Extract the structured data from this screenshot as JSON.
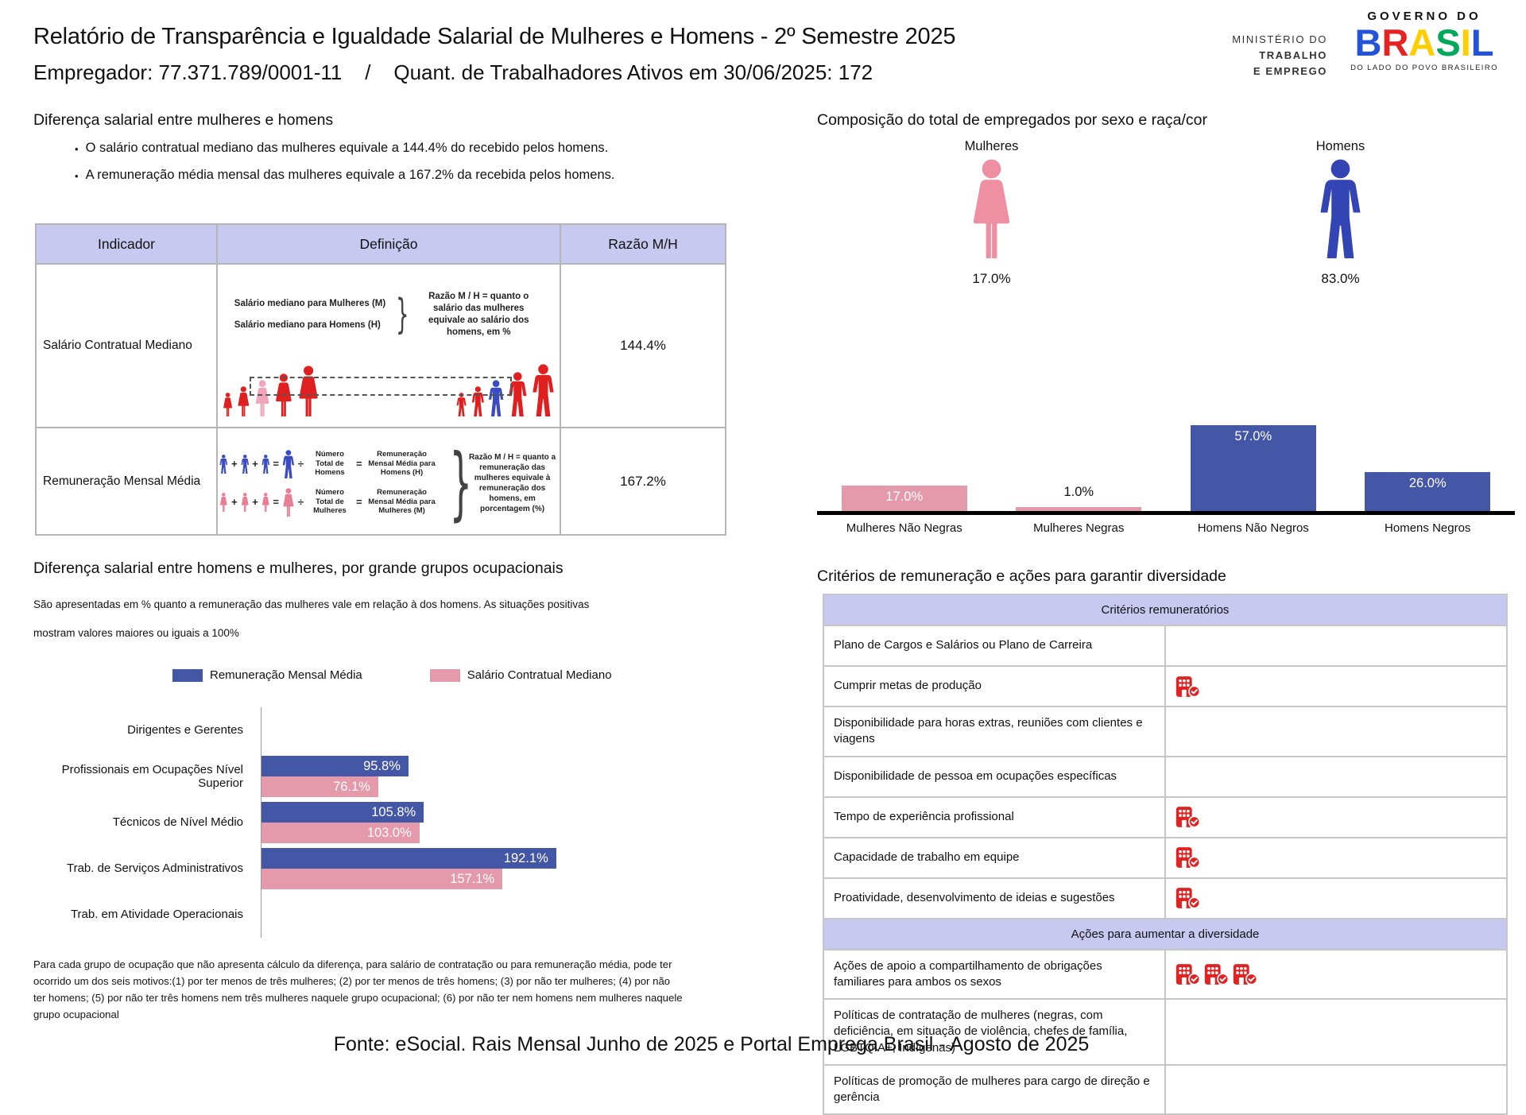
{
  "header": {
    "title": "Relatório de Transparência e Igualdade Salarial de Mulheres e Homens - 2º Semestre 2025",
    "subtitle": "Empregador: 77.371.789/0001-11    /    Quant. de Trabalhadores Ativos em 30/06/2025: 172",
    "ministry_logo": {
      "line1": "MINISTÉRIO DO",
      "line2": "TRABALHO",
      "line3": "E EMPREGO"
    },
    "gov_logo": {
      "top": "GOVERNO DO",
      "name": "BRASIL",
      "tagline": "DO LADO DO POVO BRASILEIRO",
      "letter_colors": [
        "#2353d6",
        "#e52322",
        "#ffce00",
        "#00a859",
        "#ffce00",
        "#2353d6"
      ]
    }
  },
  "pay_gap": {
    "title": "Diferença salarial entre mulheres e homens",
    "bullets": [
      "O salário contratual mediano das mulheres equivale a 144.4% do recebido pelos homens.",
      "A remuneração média mensal das mulheres equivale a 167.2% da recebida pelos homens."
    ],
    "table": {
      "headers": [
        "Indicador",
        "Definição",
        "Razão M/H"
      ],
      "row1": {
        "indicator": "Salário Contratual Mediano",
        "ratio": "144.4%"
      },
      "row2": {
        "indicator": "Remuneração Mensal Média",
        "ratio": "167.2%"
      },
      "row1_diagram": {
        "label_women": "Salário mediano para Mulheres (M)",
        "label_men": "Salário mediano para Homens (H)",
        "explain": "Razão M / H = quanto o salário das mulheres equivale ao salário dos homens, em %"
      },
      "row2_diagram": {
        "men_divisor": "Número Total de Homens",
        "men_result": "Remuneração Mensal Média para Homens (H)",
        "women_divisor": "Número Total de Mulheres",
        "women_result": "Remuneração Mensal Média para Mulheres (M)",
        "explain": "Razão M / H = quanto a remuneração das mulheres equivale à remuneração dos homens, em porcentagem (%)",
        "plus": "+",
        "equals": "=",
        "divide": "÷"
      }
    }
  },
  "composition": {
    "title": "Composição do total de empregados por sexo e raça/cor",
    "women_label": "Mulheres",
    "women_pct": "17.0%",
    "men_label": "Homens",
    "men_pct": "83.0%"
  },
  "occupation_section": {
    "title": "Diferença salarial entre homens e mulheres, por grande grupos ocupacionais",
    "desc_lines": [
      "São apresentadas em % quanto a remuneração das mulheres vale em relação à dos homens. As situações positivas",
      "mostram valores maiores ou iguais a 100%"
    ],
    "footnote_lines": [
      "Para cada grupo de ocupação que não apresenta cálculo da diferença, para salário de contratação ou para remuneração média, pode ter",
      "ocorrido um dos seis motivos:(1) por ter menos de três mulheres; (2) por ter menos de três homens; (3) por não ter mulheres; (4) por não",
      "ter homens; (5) por não ter três homens nem três mulheres naquele grupo ocupacional; (6) por não ter nem homens nem mulheres naquele",
      "grupo ocupacional"
    ]
  },
  "criteria": {
    "title": "Critérios de remuneração e ações para garantir diversidade",
    "check_icon": "company-check-icon",
    "sections": [
      {
        "header": "Critérios remuneratórios",
        "rows": [
          {
            "label": "Plano de Cargos e Salários ou Plano de Carreira",
            "icons": 0
          },
          {
            "label": "Cumprir metas de produção",
            "icons": 1
          },
          {
            "label": "Disponibilidade para horas extras, reuniões com clientes e viagens",
            "icons": 0
          },
          {
            "label": "Disponibilidade de pessoa em ocupações específicas",
            "icons": 0
          },
          {
            "label": "Tempo de experiência profissional",
            "icons": 1
          },
          {
            "label": "Capacidade de trabalho em equipe",
            "icons": 1
          },
          {
            "label": "Proatividade, desenvolvimento de ideias e sugestões",
            "icons": 1
          }
        ]
      },
      {
        "header": "Ações para aumentar a diversidade",
        "rows": [
          {
            "label": "Ações de apoio a compartilhamento de obrigações familiares para ambos os sexos",
            "icons": 3
          },
          {
            "label": "Políticas de contratação de mulheres (negras, com deficiência, em situação de violência, chefes de família, LGBTQIA+, Indígenas)",
            "icons": 0
          },
          {
            "label": "Políticas de promoção de mulheres para cargo de direção e gerência",
            "icons": 0
          }
        ]
      }
    ]
  },
  "footer": "Fonte: eSocial. Rais Mensal Junho de 2025 e Portal Emprega Brasil - Agosto de 2025",
  "colors": {
    "bar_blue": "#4456a6",
    "bar_pink": "#e59aab",
    "lavender": "#c7c9f1",
    "figure_red": "#e02020",
    "figure_pink": "#f0a6ba",
    "figure_blue": "#3b4cc0",
    "icon_red": "#e02222"
  },
  "chart_data": [
    {
      "type": "pictogram",
      "title": "Composição do total de empregados por sexo e raça/cor",
      "categories": [
        "Mulheres",
        "Homens"
      ],
      "values": [
        17.0,
        83.0
      ],
      "unit": "%"
    },
    {
      "type": "bar",
      "title": "Composição do total de empregados por sexo e raça/cor",
      "categories": [
        "Mulheres Não Negras",
        "Mulheres Negras",
        "Homens Não Negros",
        "Homens Negros"
      ],
      "values": [
        17.0,
        1.0,
        57.0,
        26.0
      ],
      "colors": [
        "#e59aab",
        "#e59aab",
        "#4456a6",
        "#4456a6"
      ],
      "unit": "%",
      "ylim": [
        0,
        60
      ],
      "grid": false,
      "value_labels": "inside"
    },
    {
      "type": "bar",
      "orientation": "horizontal",
      "title": "Diferença salarial entre homens e mulheres, por grande grupos ocupacionais",
      "categories": [
        "Dirigentes e Gerentes",
        "Profissionais em Ocupações Nível Superior",
        "Técnicos de Nível Médio",
        "Trab. de Serviços Administrativos",
        "Trab. em Atividade Operacionais"
      ],
      "series": [
        {
          "name": "Remuneração Mensal Média",
          "color": "#4456a6",
          "values": [
            null,
            95.8,
            105.8,
            192.1,
            null
          ]
        },
        {
          "name": "Salário Contratual Mediano",
          "color": "#e59aab",
          "values": [
            null,
            76.1,
            103.0,
            157.1,
            null
          ]
        }
      ],
      "unit": "%",
      "xlim": [
        0,
        200
      ],
      "grid": false,
      "legend_position": "top",
      "value_labels": "inside"
    }
  ]
}
